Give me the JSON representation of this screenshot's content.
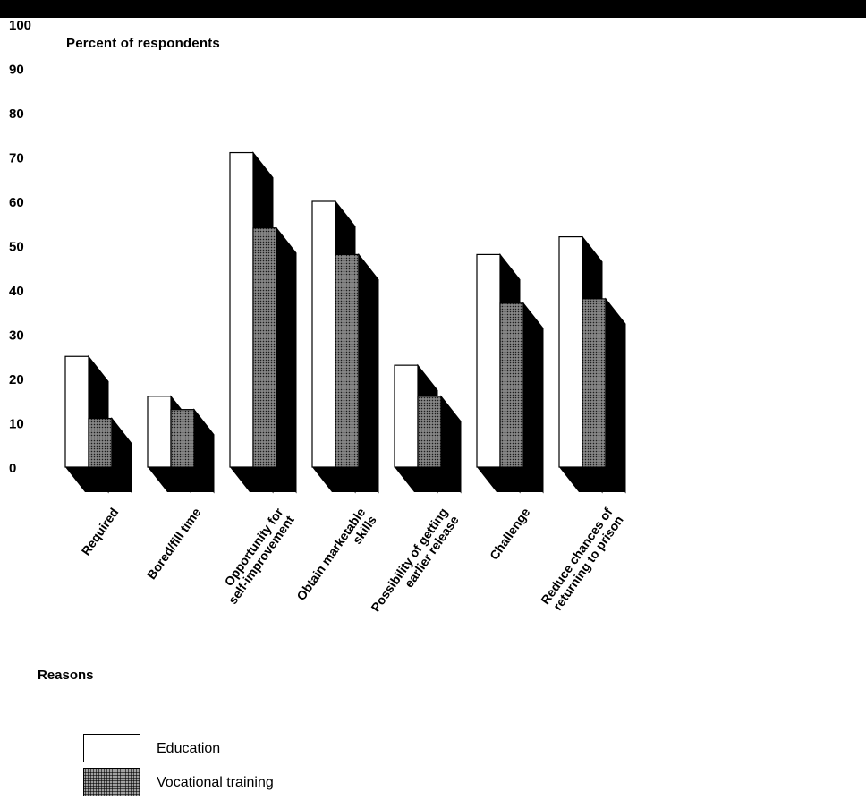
{
  "chart_data": {
    "type": "bar",
    "ylabel": "Percent of respondents",
    "xlabel": "Reasons",
    "ylim": [
      0,
      100
    ],
    "yticks": [
      0,
      10,
      20,
      30,
      40,
      50,
      60,
      70,
      80,
      90,
      100
    ],
    "grid": false,
    "legend_position": "bottom-left",
    "categories": [
      [
        "Required"
      ],
      [
        "Bored/fill time"
      ],
      [
        "Opportunity for",
        "self-improvement"
      ],
      [
        "Obtain marketable",
        "skills"
      ],
      [
        "Possibility of getting",
        "earlier release"
      ],
      [
        "Challenge"
      ],
      [
        "Reduce chances of",
        "returning to prison"
      ]
    ],
    "series": [
      {
        "name": "Education",
        "values": [
          25,
          16,
          71,
          60,
          23,
          48,
          52
        ],
        "color": "#ffffff"
      },
      {
        "name": "Vocational training",
        "values": [
          11,
          13,
          54,
          48,
          16,
          37,
          38
        ],
        "color": "#6e6e6e"
      }
    ]
  }
}
